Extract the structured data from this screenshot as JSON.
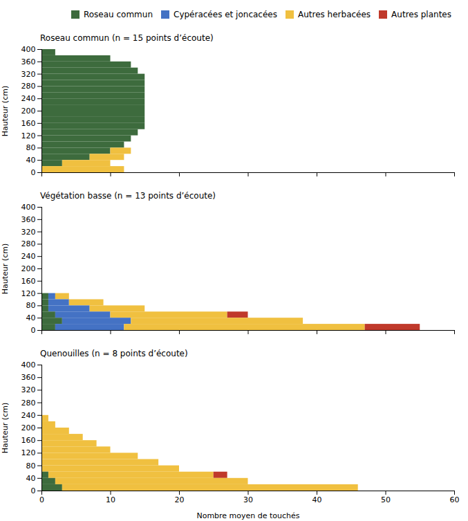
{
  "chart_data": [
    {
      "type": "bar",
      "orientation": "horizontal",
      "stacked": true,
      "grid": false,
      "title": "Roseau commun (n = 15 points d’écoute)",
      "ylabel": "Hauteur (cm)",
      "legend": "upper right",
      "tick_labels": "y",
      "xlim": [
        0,
        60
      ],
      "xticks": [
        0,
        10,
        20,
        30,
        40,
        50,
        60
      ],
      "ylim": [
        0,
        400
      ],
      "yticks": [
        0,
        40,
        80,
        120,
        160,
        200,
        240,
        280,
        320,
        360,
        400
      ],
      "bins": [
        400,
        380,
        360,
        340,
        320,
        300,
        280,
        260,
        240,
        220,
        200,
        180,
        160,
        140,
        120,
        100,
        80,
        60,
        40,
        20,
        0
      ],
      "series": [
        {
          "name": "Roseau commun",
          "color": "#3d6b3d",
          "values": [
            2,
            10,
            13,
            14,
            15,
            15,
            15,
            15,
            15,
            15,
            15,
            15,
            15,
            14,
            13,
            12,
            10,
            7,
            3,
            0
          ]
        },
        {
          "name": "Cypéracées et joncacées",
          "color": "#4472c4",
          "values": [
            0,
            0,
            0,
            0,
            0,
            0,
            0,
            0,
            0,
            0,
            0,
            0,
            0,
            0,
            0,
            0,
            0,
            0,
            0,
            0
          ]
        },
        {
          "name": "Autres herbacées",
          "color": "#f0c040",
          "values": [
            0,
            0,
            0,
            0,
            0,
            0,
            0,
            0,
            0,
            0,
            0,
            0,
            0,
            0,
            0,
            0,
            3,
            5,
            7,
            12
          ]
        },
        {
          "name": "Autres plantes",
          "color": "#c0392b",
          "values": [
            0,
            0,
            0,
            0,
            0,
            0,
            0,
            0,
            0,
            0,
            0,
            0,
            0,
            0,
            0,
            0,
            0,
            0,
            0,
            0
          ]
        }
      ]
    },
    {
      "type": "bar",
      "orientation": "horizontal",
      "stacked": true,
      "grid": false,
      "title": "Végétation basse (n = 13 points d’écoute)",
      "ylabel": "Hauteur (cm)",
      "tick_labels": "y",
      "xlim": [
        0,
        60
      ],
      "xticks": [
        0,
        10,
        20,
        30,
        40,
        50,
        60
      ],
      "ylim": [
        0,
        400
      ],
      "yticks": [
        0,
        40,
        80,
        120,
        160,
        200,
        240,
        280,
        320,
        360,
        400
      ],
      "bins": [
        120,
        100,
        80,
        60,
        40,
        20,
        0
      ],
      "series": [
        {
          "name": "Roseau commun",
          "color": "#3d6b3d",
          "values": [
            1,
            1,
            1,
            2,
            3,
            2
          ]
        },
        {
          "name": "Cypéracées et joncacées",
          "color": "#4472c4",
          "values": [
            1,
            3,
            6,
            8,
            10,
            10
          ]
        },
        {
          "name": "Autres herbacées",
          "color": "#f0c040",
          "values": [
            2,
            5,
            8,
            17,
            25,
            35
          ]
        },
        {
          "name": "Autres plantes",
          "color": "#c0392b",
          "values": [
            0,
            0,
            0,
            3,
            0,
            8
          ]
        }
      ]
    },
    {
      "type": "bar",
      "orientation": "horizontal",
      "stacked": true,
      "grid": false,
      "title": "Quenouilles (n = 8 points d’écoute)",
      "xlabel": "Nombre moyen de touchés",
      "ylabel": "Hauteur (cm)",
      "xlim": [
        0,
        60
      ],
      "xticks": [
        0,
        10,
        20,
        30,
        40,
        50,
        60
      ],
      "ylim": [
        0,
        400
      ],
      "yticks": [
        0,
        40,
        80,
        120,
        160,
        200,
        240,
        280,
        320,
        360,
        400
      ],
      "bins": [
        240,
        220,
        200,
        180,
        160,
        140,
        120,
        100,
        80,
        60,
        40,
        20,
        0
      ],
      "series": [
        {
          "name": "Roseau commun",
          "color": "#3d6b3d",
          "values": [
            0,
            0,
            0,
            0,
            0,
            0,
            0,
            0,
            0,
            1,
            2,
            3
          ]
        },
        {
          "name": "Cypéracées et joncacées",
          "color": "#4472c4",
          "values": [
            0,
            0,
            0,
            0,
            0,
            0,
            0,
            0,
            0,
            0,
            0,
            0
          ]
        },
        {
          "name": "Autres herbacées",
          "color": "#f0c040",
          "values": [
            1,
            2,
            4,
            6,
            8,
            10,
            14,
            17,
            20,
            24,
            28,
            43
          ]
        },
        {
          "name": "Autres plantes",
          "color": "#c0392b",
          "values": [
            0,
            0,
            0,
            0,
            0,
            0,
            0,
            0,
            0,
            2,
            0,
            0
          ]
        }
      ]
    }
  ]
}
